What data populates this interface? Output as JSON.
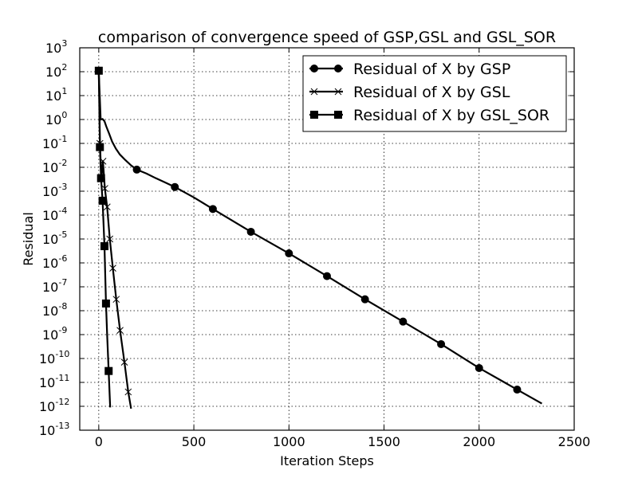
{
  "chart_data": {
    "type": "line",
    "title": "comparison of convergence speed of GSP,GSL and GSL_SOR",
    "xlabel": "Iteration Steps",
    "ylabel": "Residual",
    "xlim": [
      -100,
      2500
    ],
    "ylim_log10": [
      -13,
      3
    ],
    "yscale": "log",
    "grid": true,
    "legend_position": "top-right",
    "x_ticks": [
      "0",
      "500",
      "1000",
      "1500",
      "2000",
      "2500"
    ],
    "y_tick_exponents": [
      "3",
      "2",
      "1",
      "0",
      "-1",
      "-2",
      "-3",
      "-4",
      "-5",
      "-6",
      "-7",
      "-8",
      "-9",
      "-10",
      "-11",
      "-12",
      "-13"
    ],
    "series": [
      {
        "name": "Residual of X by GSP",
        "marker": "circle",
        "line": [
          [
            0,
            100
          ],
          [
            5,
            10
          ],
          [
            10,
            1.0
          ],
          [
            20,
            1.05
          ],
          [
            30,
            0.85
          ],
          [
            40,
            0.5
          ],
          [
            55,
            0.25
          ],
          [
            70,
            0.12
          ],
          [
            90,
            0.06
          ],
          [
            110,
            0.035
          ],
          [
            140,
            0.02
          ],
          [
            170,
            0.012
          ],
          [
            200,
            0.008
          ],
          [
            250,
            0.0055
          ],
          [
            300,
            0.0035
          ],
          [
            350,
            0.0023
          ],
          [
            400,
            0.0015
          ],
          [
            500,
            0.00055
          ],
          [
            600,
            0.00018
          ],
          [
            800,
            2e-05
          ],
          [
            1000,
            2.5e-06
          ],
          [
            1200,
            2.8e-07
          ],
          [
            1400,
            3e-08
          ],
          [
            1600,
            3.5e-09
          ],
          [
            1800,
            4e-10
          ],
          [
            2000,
            4e-11
          ],
          [
            2200,
            5e-12
          ],
          [
            2330,
            1.3e-12
          ]
        ],
        "markers_x": [
          200,
          400,
          600,
          800,
          1000,
          1200,
          1400,
          1600,
          1800,
          2000,
          2200
        ]
      },
      {
        "name": "Residual of X by GSL",
        "marker": "x",
        "line": [
          [
            0,
            100
          ],
          [
            3,
            10
          ],
          [
            6,
            0.1
          ],
          [
            14,
            0.0033
          ],
          [
            22,
            0.018
          ],
          [
            32,
            0.0013
          ],
          [
            44,
            0.00022
          ],
          [
            58,
            1e-05
          ],
          [
            74,
            6e-07
          ],
          [
            92,
            3e-08
          ],
          [
            112,
            1.5e-09
          ],
          [
            135,
            7e-11
          ],
          [
            155,
            4e-12
          ],
          [
            170,
            8e-13
          ]
        ],
        "markers_x": [
          6,
          14,
          22,
          32,
          44,
          58,
          74,
          92,
          112,
          135,
          155
        ]
      },
      {
        "name": "Residual of X by GSL_SOR",
        "marker": "square",
        "line": [
          [
            0,
            110
          ],
          [
            6,
            0.07
          ],
          [
            12,
            0.0035
          ],
          [
            20,
            0.0004
          ],
          [
            30,
            5e-06
          ],
          [
            38,
            2e-08
          ],
          [
            44,
            1e-09
          ],
          [
            52,
            3e-11
          ],
          [
            60,
            9e-13
          ]
        ],
        "markers_x": [
          0,
          6,
          12,
          20,
          30,
          38,
          52
        ]
      }
    ]
  }
}
